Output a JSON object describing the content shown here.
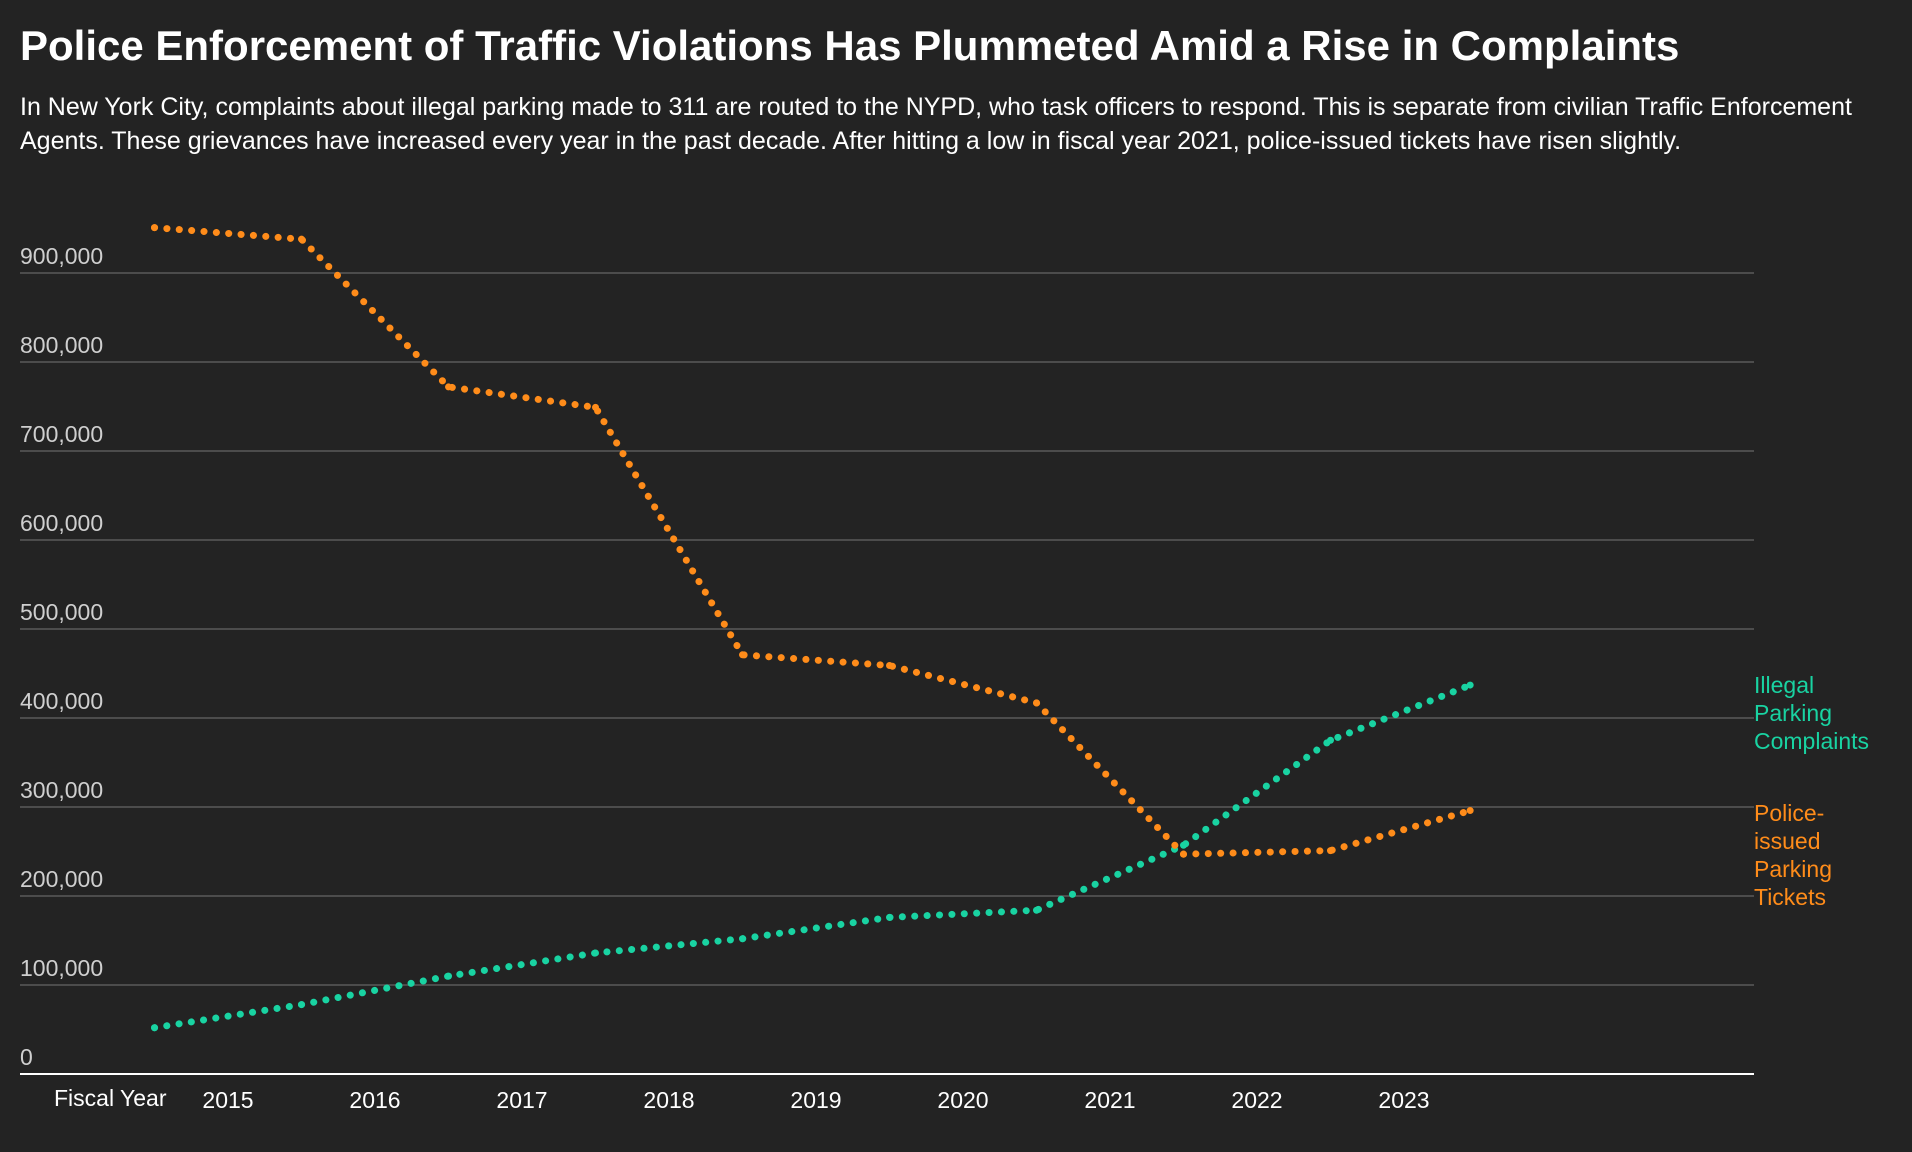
{
  "title": "Police Enforcement of Traffic Violations Has Plummeted Amid a Rise in Complaints",
  "subtitle": "In New York City, complaints about illegal parking made to 311 are routed to the NYPD, who task officers to respond. This is separate from civilian Traffic Enforcement Agents. These grievances have increased every year in the past decade. After hitting a low in fiscal year 2021, police-issued tickets have risen slightly.",
  "chart_data": {
    "type": "line",
    "xlabel": "Fiscal Year",
    "ylabel": "",
    "ylim": [
      0,
      1000000
    ],
    "y_ticks": [
      0,
      100000,
      200000,
      300000,
      400000,
      500000,
      600000,
      700000,
      800000,
      900000
    ],
    "y_tick_labels": [
      "0",
      "100,000",
      "200,000",
      "300,000",
      "400,000",
      "500,000",
      "600,000",
      "700,000",
      "800,000",
      "900,000"
    ],
    "x_ticks": [
      2015,
      2016,
      2017,
      2018,
      2019,
      2020,
      2021,
      2022,
      2023
    ],
    "x_tick_labels": [
      "2015",
      "2016",
      "2017",
      "2018",
      "2019",
      "2020",
      "2021",
      "2022",
      "2023"
    ],
    "grid": true,
    "legend": "direct labels at right end of lines",
    "line_style": "dotted",
    "series": [
      {
        "name": "Illegal Parking Complaints",
        "label_lines": [
          "Illegal",
          "Parking",
          "Complaints"
        ],
        "color": "#19d3a2",
        "points": [
          [
            2014.5,
            52000
          ],
          [
            2015.5,
            78000
          ],
          [
            2016.5,
            110000
          ],
          [
            2017.5,
            136000
          ],
          [
            2018.5,
            152000
          ],
          [
            2019.5,
            176000
          ],
          [
            2020.5,
            184000
          ],
          [
            2021.5,
            257000
          ],
          [
            2022.5,
            375000
          ],
          [
            2023.45,
            437000
          ]
        ]
      },
      {
        "name": "Police-issued Parking Tickets",
        "label_lines": [
          "Police-",
          "issued",
          "Parking",
          "Tickets"
        ],
        "color": "#ff8c1a",
        "points": [
          [
            2014.5,
            951000
          ],
          [
            2015.5,
            938000
          ],
          [
            2016.5,
            772000
          ],
          [
            2017.5,
            749000
          ],
          [
            2018.5,
            471000
          ],
          [
            2019.5,
            459000
          ],
          [
            2020.5,
            417000
          ],
          [
            2021.5,
            247000
          ],
          [
            2022.5,
            251000
          ],
          [
            2023.45,
            296000
          ]
        ]
      }
    ]
  },
  "colors": {
    "background": "#232323",
    "gridline": "#5a5a5a",
    "axis": "#ffffff",
    "complaints": "#19d3a2",
    "tickets": "#ff8c1a"
  }
}
